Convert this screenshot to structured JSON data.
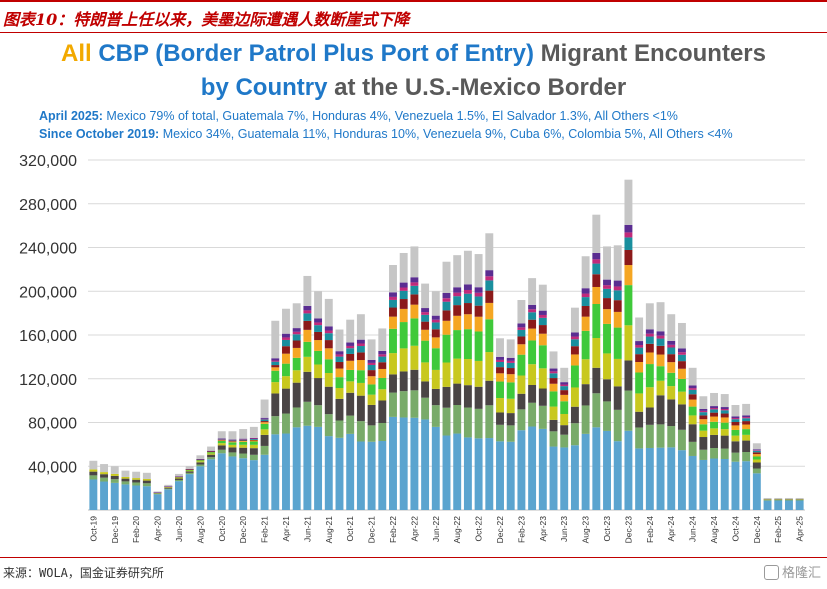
{
  "figure_caption": "图表10：特朗普上任以来，美墨边际遭遇人数断崖式下降",
  "title": {
    "line1": {
      "all": "All",
      "cbp": "CBP (Border Patrol Plus Port of Entry)",
      "rest": "Migrant Encounters"
    },
    "line2": {
      "bycountry": "by Country",
      "rest": "at the U.S.-Mexico Border"
    }
  },
  "subtitles": [
    {
      "label": "April 2025:",
      "text": "Mexico 79% of total, Guatemala 7%, Honduras 4%, Venezuela 1.5%, El Salvador 1.3%, All Others <1%"
    },
    {
      "label": "Since October 2019:",
      "text": "Mexico 34%, Guatemala 11%, Honduras 10%, Venezuela 9%, Cuba 6%, Colombia 5%, All Others <4%"
    }
  ],
  "source": "来源：WOLA，国金证券研究所",
  "watermark": "格隆汇",
  "colors": {
    "mexico": "#5ba4cf",
    "guatemala": "#79ab6a",
    "honduras": "#4a4545",
    "elsalvador": "#c8c81e",
    "venezuela": "#3fc93a",
    "cuba": "#f5a623",
    "colombia": "#8b1a1a",
    "ecuador": "#1a8f9e",
    "nicaragua": "#c12a7a",
    "purple": "#5a2d91",
    "others": "#c6c6c6",
    "grid": "#d9d9d9",
    "red": "#c00000"
  },
  "chart_data": {
    "type": "bar",
    "stacked": true,
    "ylim": [
      0,
      320000
    ],
    "yticks": [
      "40,000",
      "80,000",
      "120,000",
      "160,000",
      "200,000",
      "240,000",
      "280,000",
      "320,000"
    ],
    "ytick_values": [
      40000,
      80000,
      120000,
      160000,
      200000,
      240000,
      280000,
      320000
    ],
    "grid": true,
    "xtick_labels": [
      "Oct-19",
      "Dec-19",
      "Feb-20",
      "Apr-20",
      "Jun-20",
      "Aug-20",
      "Oct-20",
      "Dec-20",
      "Feb-21",
      "Apr-21",
      "Jun-21",
      "Aug-21",
      "Oct-21",
      "Dec-21",
      "Feb-22",
      "Apr-22",
      "Jun-22",
      "Aug-22",
      "Oct-22",
      "Dec-22",
      "Feb-23",
      "Apr-23",
      "Jun-23",
      "Aug-23",
      "Oct-23",
      "Dec-23",
      "Feb-24",
      "Apr-24",
      "Jun-24",
      "Aug-24",
      "Oct-24",
      "Dec-24",
      "Feb-25",
      "Apr-25"
    ],
    "totals": [
      45000,
      42000,
      40000,
      36000,
      35000,
      34000,
      17000,
      23000,
      33000,
      40000,
      50000,
      58000,
      72000,
      72000,
      74000,
      76000,
      101000,
      173000,
      184000,
      189000,
      214000,
      200000,
      193000,
      165000,
      174000,
      179000,
      156000,
      166000,
      224000,
      235000,
      241000,
      207000,
      200000,
      227000,
      233000,
      237000,
      234000,
      253000,
      157000,
      156000,
      192000,
      212000,
      206000,
      145000,
      130000,
      185000,
      232000,
      270000,
      241000,
      242000,
      302000,
      176000,
      189000,
      190000,
      179000,
      171000,
      130000,
      104000,
      107000,
      106000,
      96000,
      97000,
      61000,
      11000,
      11000,
      11000,
      11000
    ],
    "mexico_share": [
      0.62,
      0.62,
      0.62,
      0.65,
      0.64,
      0.64,
      0.85,
      0.82,
      0.8,
      0.82,
      0.8,
      0.8,
      0.72,
      0.68,
      0.64,
      0.6,
      0.5,
      0.4,
      0.38,
      0.4,
      0.36,
      0.38,
      0.35,
      0.4,
      0.4,
      0.35,
      0.4,
      0.38,
      0.38,
      0.36,
      0.35,
      0.4,
      0.38,
      0.3,
      0.3,
      0.28,
      0.28,
      0.26,
      0.4,
      0.4,
      0.38,
      0.36,
      0.36,
      0.4,
      0.44,
      0.32,
      0.3,
      0.28,
      0.3,
      0.26,
      0.24,
      0.32,
      0.3,
      0.3,
      0.32,
      0.32,
      0.38,
      0.44,
      0.44,
      0.44,
      0.46,
      0.46,
      0.55,
      0.78,
      0.79,
      0.79,
      0.79
    ]
  }
}
